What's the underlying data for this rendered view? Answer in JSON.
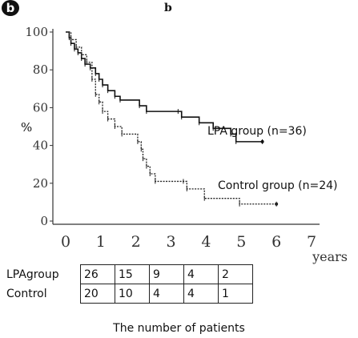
{
  "badge": "b",
  "panel_label": "b",
  "chart_data": {
    "type": "line",
    "title": "b",
    "xlabel": "years",
    "ylabel": "%",
    "xlim": [
      0,
      7
    ],
    "ylim": [
      0,
      100
    ],
    "x_ticks": [
      "0",
      "1",
      "2",
      "3",
      "4",
      "5",
      "6",
      "7"
    ],
    "y_ticks": [
      "0",
      "20",
      "40",
      "60",
      "80",
      "100"
    ],
    "series": [
      {
        "name": "LPA group (n=36)",
        "style": "solid",
        "color": "#111111",
        "steps": [
          [
            0.0,
            100
          ],
          [
            0.1,
            97
          ],
          [
            0.15,
            94
          ],
          [
            0.25,
            91
          ],
          [
            0.35,
            89
          ],
          [
            0.45,
            86
          ],
          [
            0.55,
            83
          ],
          [
            0.7,
            81
          ],
          [
            0.85,
            78
          ],
          [
            0.95,
            75
          ],
          [
            1.05,
            72
          ],
          [
            1.2,
            69
          ],
          [
            1.4,
            66
          ],
          [
            1.55,
            64
          ],
          [
            2.1,
            61
          ],
          [
            2.3,
            58
          ],
          [
            3.2,
            58
          ],
          [
            3.3,
            55
          ],
          [
            3.8,
            52
          ],
          [
            4.2,
            49
          ],
          [
            4.7,
            46
          ],
          [
            4.85,
            42
          ],
          [
            5.6,
            42
          ]
        ],
        "censored": [
          5.6
        ]
      },
      {
        "name": "Control group (n=24)",
        "style": "dotted",
        "color": "#222222",
        "steps": [
          [
            0.0,
            100
          ],
          [
            0.15,
            96
          ],
          [
            0.3,
            92
          ],
          [
            0.45,
            88
          ],
          [
            0.6,
            84
          ],
          [
            0.75,
            75
          ],
          [
            0.85,
            67
          ],
          [
            0.95,
            63
          ],
          [
            1.05,
            58
          ],
          [
            1.2,
            54
          ],
          [
            1.4,
            50
          ],
          [
            1.6,
            46
          ],
          [
            2.05,
            42
          ],
          [
            2.15,
            38
          ],
          [
            2.2,
            33
          ],
          [
            2.3,
            29
          ],
          [
            2.4,
            25
          ],
          [
            2.55,
            21
          ],
          [
            3.35,
            21
          ],
          [
            3.45,
            17
          ],
          [
            3.95,
            12
          ],
          [
            4.95,
            9
          ],
          [
            6.0,
            9
          ]
        ],
        "censored": [
          6.0
        ]
      }
    ]
  },
  "risk_table": {
    "rows": [
      {
        "name": "LPAgroup",
        "values": [
          "26",
          "15",
          "9",
          "4",
          "2"
        ]
      },
      {
        "name": "Control",
        "values": [
          "20",
          "10",
          "4",
          "4",
          "1"
        ]
      }
    ],
    "caption": "The number of patients"
  }
}
